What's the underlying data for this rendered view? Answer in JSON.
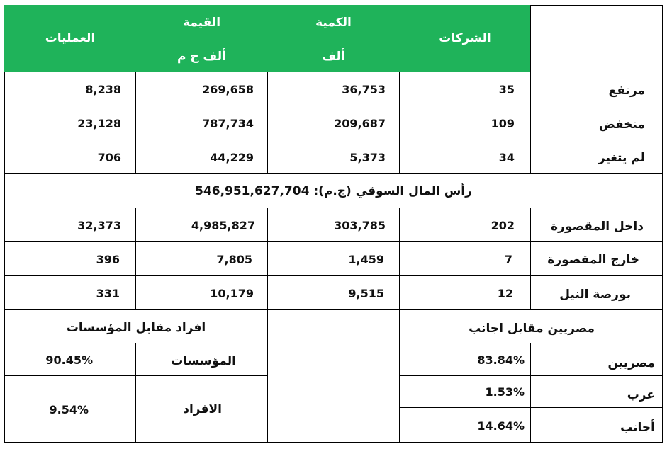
{
  "header": {
    "operations": "العمليات",
    "value": "القيمة",
    "value_unit": "ألف ج م",
    "quantity": "الكمية",
    "quantity_unit": "ألف",
    "companies": "الشركات"
  },
  "rows": [
    {
      "label": "مرتفع",
      "companies": "35",
      "quantity": "36,753",
      "value": "269,658",
      "operations": "8,238"
    },
    {
      "label": "منخفض",
      "companies": "109",
      "quantity": "209,687",
      "value": "787,734",
      "operations": "23,128"
    },
    {
      "label": "لم يتغير",
      "companies": "34",
      "quantity": "5,373",
      "value": "44,229",
      "operations": "706"
    }
  ],
  "market_cap": "رأس المال السوقي (ج.م): 546,951,627,704",
  "markets": [
    {
      "label": "داخل المقصورة",
      "companies": "202",
      "quantity": "303,785",
      "value": "4,985,827",
      "operations": "32,373"
    },
    {
      "label": "خارج المقصورة",
      "companies": "7",
      "quantity": "1,459",
      "value": "7,805",
      "operations": "396"
    },
    {
      "label": "بورصة النيل",
      "companies": "12",
      "quantity": "9,515",
      "value": "10,179",
      "operations": "331"
    }
  ],
  "individuals_vs_institutions": {
    "title": "افراد مقابل المؤسسات",
    "institutions_label": "المؤسسات",
    "institutions_pct": "90.45%",
    "individuals_label": "الافراد",
    "individuals_pct": "9.54%"
  },
  "egyptians_vs_foreigners": {
    "title": "مصريين مقابل اجانب",
    "egyptians_label": "مصريين",
    "egyptians_pct": "83.84%",
    "arabs_label": "عرب",
    "arabs_pct": "1.53%",
    "foreigners_label": "أجانب",
    "foreigners_pct": "14.64%"
  },
  "colors": {
    "header_bg": "#1fb35a",
    "header_text": "#ffffff",
    "border": "#000000"
  }
}
